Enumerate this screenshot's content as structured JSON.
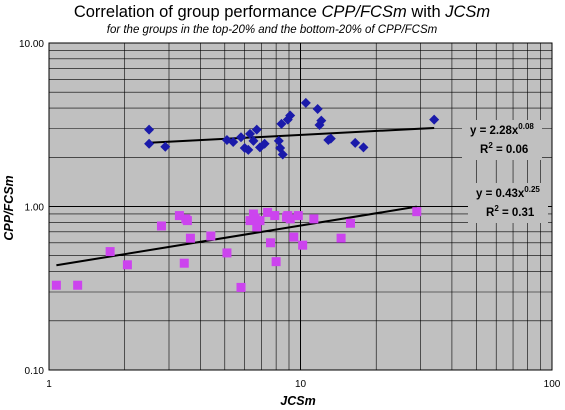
{
  "chart_data": {
    "type": "scatter",
    "title": {
      "prefix": "Correlation of group performance ",
      "italic1": "CPP/FCSm",
      "mid": " with ",
      "italic2": "JCSm"
    },
    "subtitle": "for the groups in the top-20% and the bottom-20% of CPP/FCSm",
    "xlabel": "JCSm",
    "ylabel": "CPP/FCSm",
    "x_scale": "log",
    "y_scale": "log",
    "xlim": [
      1,
      100
    ],
    "ylim": [
      0.1,
      10
    ],
    "x_ticks": [
      "1",
      "10",
      "100"
    ],
    "y_ticks": [
      "10.00",
      "1.00",
      "0.10"
    ],
    "grid": true,
    "plot_background": "#c0c0c0",
    "series": [
      {
        "marker": "diamond",
        "color": "#1a1aaa",
        "points": [
          [
            2.5,
            2.95
          ],
          [
            2.5,
            2.42
          ],
          [
            2.9,
            2.32
          ],
          [
            5.1,
            2.55
          ],
          [
            5.4,
            2.48
          ],
          [
            5.8,
            2.65
          ],
          [
            6.0,
            2.28
          ],
          [
            6.2,
            2.22
          ],
          [
            6.3,
            2.78
          ],
          [
            6.5,
            2.52
          ],
          [
            6.7,
            2.95
          ],
          [
            6.9,
            2.3
          ],
          [
            7.2,
            2.42
          ],
          [
            8.2,
            2.52
          ],
          [
            8.3,
            2.28
          ],
          [
            8.4,
            3.2
          ],
          [
            8.5,
            2.08
          ],
          [
            8.9,
            3.4
          ],
          [
            9.1,
            3.6
          ],
          [
            10.5,
            4.3
          ],
          [
            11.7,
            3.95
          ],
          [
            11.9,
            3.15
          ],
          [
            12.1,
            3.35
          ],
          [
            12.9,
            2.55
          ],
          [
            13.2,
            2.6
          ],
          [
            16.5,
            2.45
          ],
          [
            17.8,
            2.3
          ],
          [
            34.0,
            3.4
          ]
        ],
        "trendline": {
          "a": 2.28,
          "b": 0.08,
          "x_range": [
            2.5,
            34
          ],
          "label": "y = 2.28x",
          "exponent": "0.08",
          "r2_label": "R",
          "r2_value": " = 0.06"
        }
      },
      {
        "marker": "square",
        "color": "#cc44ee",
        "points": [
          [
            1.07,
            0.33
          ],
          [
            1.3,
            0.33
          ],
          [
            1.75,
            0.53
          ],
          [
            2.05,
            0.44
          ],
          [
            2.8,
            0.76
          ],
          [
            3.3,
            0.88
          ],
          [
            3.45,
            0.45
          ],
          [
            3.5,
            0.84
          ],
          [
            3.55,
            0.82
          ],
          [
            3.65,
            0.64
          ],
          [
            4.4,
            0.66
          ],
          [
            5.1,
            0.52
          ],
          [
            5.8,
            0.32
          ],
          [
            6.3,
            0.82
          ],
          [
            6.5,
            0.9
          ],
          [
            6.6,
            0.85
          ],
          [
            6.7,
            0.75
          ],
          [
            6.9,
            0.82
          ],
          [
            7.4,
            0.92
          ],
          [
            7.6,
            0.6
          ],
          [
            7.9,
            0.88
          ],
          [
            8.0,
            0.46
          ],
          [
            8.8,
            0.86
          ],
          [
            8.9,
            0.88
          ],
          [
            9.1,
            0.84
          ],
          [
            9.4,
            0.65
          ],
          [
            9.8,
            0.88
          ],
          [
            10.2,
            0.58
          ],
          [
            11.3,
            0.84
          ],
          [
            14.5,
            0.64
          ],
          [
            15.8,
            0.79
          ],
          [
            29.0,
            0.93
          ]
        ],
        "trendline": {
          "a": 0.43,
          "b": 0.25,
          "x_range": [
            1.07,
            29
          ],
          "label": "y = 0.43x",
          "exponent": "0.25",
          "r2_label": "R",
          "r2_value": " = 0.31"
        }
      }
    ]
  }
}
